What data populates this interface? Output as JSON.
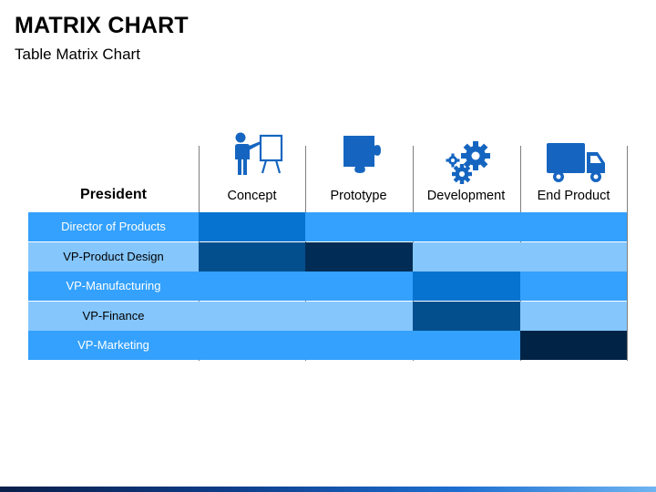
{
  "header": {
    "title": "MATRIX CHART",
    "subtitle": "Table Matrix Chart"
  },
  "colors": {
    "icon": "#1565c0",
    "row_label_light_text": "#ffffff",
    "row_label_dark_text": "#000000",
    "footer_gradient": [
      "#0a1f4a",
      "#1d6fd1",
      "#6fb5f2"
    ]
  },
  "chart_data": {
    "type": "table",
    "title": "MATRIX CHART",
    "subtitle": "Table Matrix Chart",
    "row_header": "President",
    "columns": [
      {
        "label": "Concept",
        "icon": "presenter-whiteboard-icon"
      },
      {
        "label": "Prototype",
        "icon": "puzzle-piece-icon"
      },
      {
        "label": "Development",
        "icon": "gears-icon"
      },
      {
        "label": "End Product",
        "icon": "delivery-truck-icon"
      }
    ],
    "rows": [
      {
        "label": "Director of Products",
        "label_bg": "#33a1fd",
        "label_color": "#ffffff",
        "cells": [
          "#0573cf",
          "#33a1fd",
          "#33a1fd",
          "#33a1fd"
        ]
      },
      {
        "label": "VP-Product Design",
        "label_bg": "#85c6fd",
        "label_color": "#000000",
        "cells": [
          "#034f8e",
          "#012c55",
          "#85c6fd",
          "#85c6fd"
        ]
      },
      {
        "label": "VP-Manufacturing",
        "label_bg": "#33a1fd",
        "label_color": "#ffffff",
        "cells": [
          "#33a1fd",
          "#33a1fd",
          "#0573cf",
          "#33a1fd"
        ]
      },
      {
        "label": "VP-Finance",
        "label_bg": "#85c6fd",
        "label_color": "#000000",
        "cells": [
          "#85c6fd",
          "#85c6fd",
          "#034f8e",
          "#85c6fd"
        ]
      },
      {
        "label": "VP-Marketing",
        "label_bg": "#33a1fd",
        "label_color": "#ffffff",
        "cells": [
          "#33a1fd",
          "#33a1fd",
          "#33a1fd",
          "#012345"
        ]
      }
    ]
  }
}
